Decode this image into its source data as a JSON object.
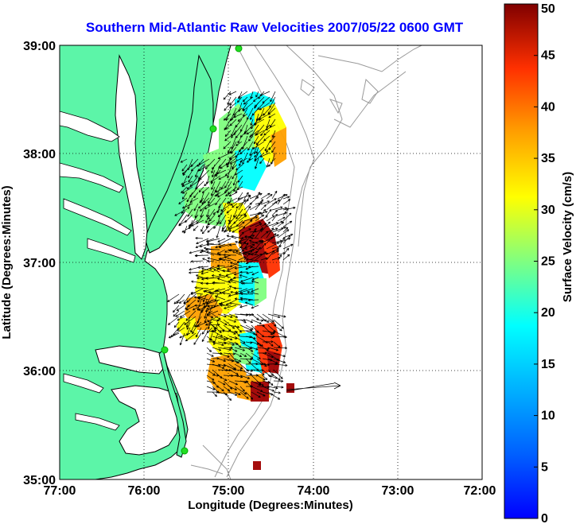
{
  "title": "Southern Mid-Atlantic Raw Velocities 2007/05/22 0600 GMT",
  "xlabel": "Longitude (Degrees:Minutes)",
  "ylabel": "Latitude (Degrees:Minutes)",
  "colorbar_label": "Surface Velocity (cm/s)",
  "x_ticks": [
    "77:00",
    "76:00",
    "75:00",
    "74:00",
    "73:00",
    "72:00"
  ],
  "y_ticks": [
    "39:00",
    "38:00",
    "37:00",
    "36:00",
    "35:00"
  ],
  "colorbar_ticks": [
    "50",
    "45",
    "40",
    "35",
    "30",
    "25",
    "20",
    "15",
    "10",
    "5",
    "0"
  ],
  "colors": {
    "land": "#5cf5a8",
    "water": "#ffffff",
    "coast": "#000000",
    "bathymetry": "#9a9a9a",
    "title": "#0000ff",
    "station": "#22dd22"
  },
  "colormap": "jet",
  "extent": {
    "lon": [
      -77,
      -72
    ],
    "lat": [
      35,
      39
    ]
  },
  "colorbar_range": [
    0,
    50
  ]
}
